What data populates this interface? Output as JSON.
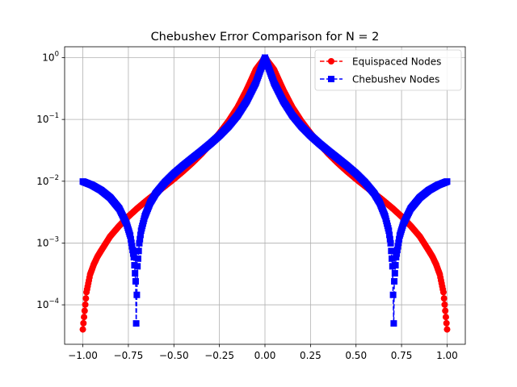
{
  "chart_data": {
    "type": "line",
    "title": "Chebushev Error Comparison for N = 2",
    "xlabel": "",
    "ylabel": "",
    "xscale": "linear",
    "yscale": "log",
    "xlim": [
      -1.1,
      1.1
    ],
    "ylim": [
      2.3e-05,
      1.5
    ],
    "grid": true,
    "legend_position": "upper right",
    "x_ticks": [
      -1.0,
      -0.75,
      -0.5,
      -0.25,
      0.0,
      0.25,
      0.5,
      0.75,
      1.0
    ],
    "x_tick_labels": [
      "−1.00",
      "−0.75",
      "−0.50",
      "−0.25",
      "0.00",
      "0.25",
      "0.50",
      "0.75",
      "1.00"
    ],
    "y_ticks": [
      0.0001,
      0.001,
      0.01,
      0.1,
      1
    ],
    "y_tick_labels": [
      {
        "base": "10",
        "exp": "−4"
      },
      {
        "base": "10",
        "exp": "−3"
      },
      {
        "base": "10",
        "exp": "−2"
      },
      {
        "base": "10",
        "exp": "−1"
      },
      {
        "base": "10",
        "exp": "0"
      }
    ],
    "series": [
      {
        "name": "Equispaced Nodes",
        "color": "#ff0000",
        "marker": "circle",
        "linestyle": "dashed",
        "x": [
          -1.0,
          -0.99,
          -0.98,
          -0.96,
          -0.94,
          -0.92,
          -0.9,
          -0.85,
          -0.8,
          -0.75,
          -0.7,
          -0.65,
          -0.6,
          -0.55,
          -0.5,
          -0.45,
          -0.4,
          -0.35,
          -0.3,
          -0.25,
          -0.2,
          -0.15,
          -0.1,
          -0.05,
          0.0,
          0.05,
          0.1,
          0.15,
          0.2,
          0.25,
          0.3,
          0.35,
          0.4,
          0.45,
          0.5,
          0.55,
          0.6,
          0.65,
          0.7,
          0.75,
          0.8,
          0.85,
          0.9,
          0.92,
          0.94,
          0.96,
          0.98,
          0.99,
          1.0
        ],
        "y": [
          4e-05,
          8e-05,
          0.00016,
          0.00031,
          0.00045,
          0.0006,
          0.00075,
          0.00128,
          0.0019,
          0.00269,
          0.00366,
          0.00486,
          0.00636,
          0.00832,
          0.0109,
          0.0145,
          0.0197,
          0.0275,
          0.0398,
          0.0598,
          0.0938,
          0.158,
          0.304,
          0.641,
          1.0,
          0.641,
          0.304,
          0.158,
          0.0938,
          0.0598,
          0.0398,
          0.0275,
          0.0197,
          0.0145,
          0.0109,
          0.00832,
          0.00636,
          0.00486,
          0.00366,
          0.00269,
          0.0019,
          0.00128,
          0.00075,
          0.0006,
          0.00045,
          0.00031,
          0.00016,
          8e-05,
          4e-05
        ]
      },
      {
        "name": "Chebushev Nodes",
        "color": "#0000ff",
        "marker": "square",
        "linestyle": "dashed",
        "x": [
          -1.0,
          -0.95,
          -0.9,
          -0.85,
          -0.8,
          -0.76,
          -0.74,
          -0.72,
          -0.71,
          -0.7071,
          -0.7,
          -0.69,
          -0.68,
          -0.66,
          -0.63,
          -0.6,
          -0.55,
          -0.5,
          -0.45,
          -0.4,
          -0.35,
          -0.3,
          -0.25,
          -0.2,
          -0.15,
          -0.1,
          -0.05,
          0.0,
          0.05,
          0.1,
          0.15,
          0.2,
          0.25,
          0.3,
          0.35,
          0.4,
          0.45,
          0.5,
          0.55,
          0.6,
          0.63,
          0.66,
          0.68,
          0.69,
          0.7,
          0.7071,
          0.71,
          0.72,
          0.74,
          0.76,
          0.8,
          0.85,
          0.9,
          0.95,
          1.0
        ],
        "y": [
          0.0099,
          0.00866,
          0.00714,
          0.00543,
          0.0036,
          0.00206,
          0.00132,
          0.00059,
          0.00024,
          5e-05,
          0.00042,
          0.00099,
          0.00158,
          0.00271,
          0.0045,
          0.00633,
          0.00951,
          0.0133,
          0.0178,
          0.0234,
          0.0306,
          0.0405,
          0.0549,
          0.0774,
          0.117,
          0.199,
          0.392,
          1.0,
          0.392,
          0.199,
          0.117,
          0.0774,
          0.0549,
          0.0405,
          0.0306,
          0.0234,
          0.0178,
          0.0133,
          0.00951,
          0.00633,
          0.0045,
          0.00271,
          0.00158,
          0.00099,
          0.00042,
          5e-05,
          0.00024,
          0.00059,
          0.00132,
          0.00206,
          0.0036,
          0.00543,
          0.00714,
          0.00866,
          0.0099
        ]
      }
    ]
  }
}
